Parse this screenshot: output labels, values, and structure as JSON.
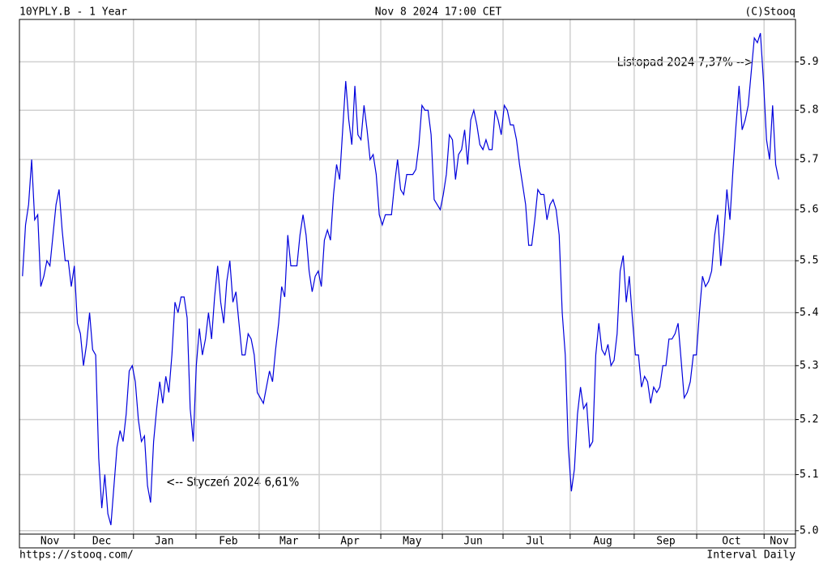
{
  "chart_data": {
    "type": "line",
    "title": "10YPLY.B - 1 Year",
    "subtitle": "Nov 8 2024 17:00 CET",
    "credit": "(C)Stooq",
    "source": "https://stooq.com/",
    "interval": "Interval Daily",
    "annotations": [
      "Listopad 2024 7,37% -->",
      "<-- Styczeń 2024 6,61%"
    ],
    "log_scale": true,
    "grid": true,
    "ylim": [
      4.994,
      5.989
    ],
    "yticks": [
      {
        "value": 5.0,
        "label": "5.0"
      },
      5.1,
      5.2,
      5.3,
      5.4,
      5.5,
      5.6,
      5.7,
      5.8,
      5.9
    ],
    "xlim": [
      -1,
      253.5
    ],
    "xticks": [
      {
        "value": 9,
        "label": "Nov"
      },
      {
        "value": 26,
        "label": "Dec"
      },
      {
        "value": 46.5,
        "label": "Jan"
      },
      {
        "value": 67.5,
        "label": "Feb"
      },
      {
        "value": 87.4,
        "label": "Mar"
      },
      {
        "value": 107.4,
        "label": "Apr"
      },
      {
        "value": 127.8,
        "label": "May"
      },
      {
        "value": 147.8,
        "label": "Jun"
      },
      {
        "value": 168.2,
        "label": "Jul"
      },
      {
        "value": 190.3,
        "label": "Aug"
      },
      {
        "value": 211,
        "label": "Sep"
      },
      {
        "value": 232.5,
        "label": "Oct"
      },
      {
        "value": 248.2,
        "label": "Nov"
      }
    ],
    "xgrid": [
      17,
      36.4,
      56.9,
      77.6,
      97.3,
      117.5,
      137.7,
      157.6,
      179.6,
      200.6,
      221.1,
      243.2
    ],
    "series": [
      {
        "color": "#0000dd",
        "values": [
          5.47,
          5.57,
          5.61,
          5.7,
          5.58,
          5.59,
          5.45,
          5.47,
          5.5,
          5.49,
          5.55,
          5.61,
          5.64,
          5.56,
          5.5,
          5.5,
          5.45,
          5.49,
          5.38,
          5.36,
          5.3,
          5.34,
          5.4,
          5.33,
          5.32,
          5.13,
          5.04,
          5.1,
          5.03,
          5.01,
          5.08,
          5.15,
          5.18,
          5.16,
          5.21,
          5.29,
          5.3,
          5.27,
          5.2,
          5.16,
          5.17,
          5.08,
          5.05,
          5.16,
          5.22,
          5.27,
          5.23,
          5.28,
          5.25,
          5.32,
          5.42,
          5.4,
          5.43,
          5.43,
          5.39,
          5.22,
          5.16,
          5.3,
          5.37,
          5.32,
          5.35,
          5.4,
          5.35,
          5.43,
          5.49,
          5.42,
          5.38,
          5.46,
          5.5,
          5.42,
          5.44,
          5.38,
          5.32,
          5.32,
          5.36,
          5.35,
          5.32,
          5.25,
          5.24,
          5.23,
          5.26,
          5.29,
          5.27,
          5.33,
          5.38,
          5.45,
          5.43,
          5.55,
          5.49,
          5.49,
          5.49,
          5.55,
          5.59,
          5.55,
          5.48,
          5.44,
          5.47,
          5.48,
          5.45,
          5.54,
          5.56,
          5.54,
          5.63,
          5.69,
          5.66,
          5.76,
          5.86,
          5.78,
          5.73,
          5.85,
          5.75,
          5.74,
          5.81,
          5.76,
          5.7,
          5.71,
          5.67,
          5.59,
          5.57,
          5.59,
          5.59,
          5.59,
          5.65,
          5.7,
          5.64,
          5.63,
          5.67,
          5.67,
          5.67,
          5.68,
          5.73,
          5.81,
          5.8,
          5.8,
          5.75,
          5.62,
          5.61,
          5.6,
          5.63,
          5.67,
          5.75,
          5.74,
          5.66,
          5.71,
          5.72,
          5.76,
          5.69,
          5.78,
          5.8,
          5.77,
          5.73,
          5.72,
          5.74,
          5.72,
          5.72,
          5.8,
          5.78,
          5.75,
          5.81,
          5.8,
          5.77,
          5.77,
          5.74,
          5.69,
          5.65,
          5.61,
          5.53,
          5.53,
          5.58,
          5.64,
          5.63,
          5.63,
          5.58,
          5.61,
          5.62,
          5.6,
          5.55,
          5.4,
          5.32,
          5.15,
          5.07,
          5.11,
          5.21,
          5.26,
          5.22,
          5.23,
          5.15,
          5.16,
          5.32,
          5.38,
          5.33,
          5.32,
          5.34,
          5.3,
          5.31,
          5.36,
          5.48,
          5.51,
          5.42,
          5.47,
          5.39,
          5.32,
          5.32,
          5.26,
          5.28,
          5.27,
          5.23,
          5.26,
          5.25,
          5.26,
          5.3,
          5.3,
          5.35,
          5.35,
          5.36,
          5.38,
          5.31,
          5.24,
          5.25,
          5.27,
          5.32,
          5.32,
          5.4,
          5.47,
          5.45,
          5.46,
          5.48,
          5.55,
          5.59,
          5.49,
          5.55,
          5.64,
          5.58,
          5.68,
          5.77,
          5.85,
          5.76,
          5.78,
          5.81,
          5.88,
          5.95,
          5.94,
          5.96,
          5.86,
          5.74,
          5.7,
          5.81,
          5.69,
          5.66
        ]
      }
    ]
  }
}
